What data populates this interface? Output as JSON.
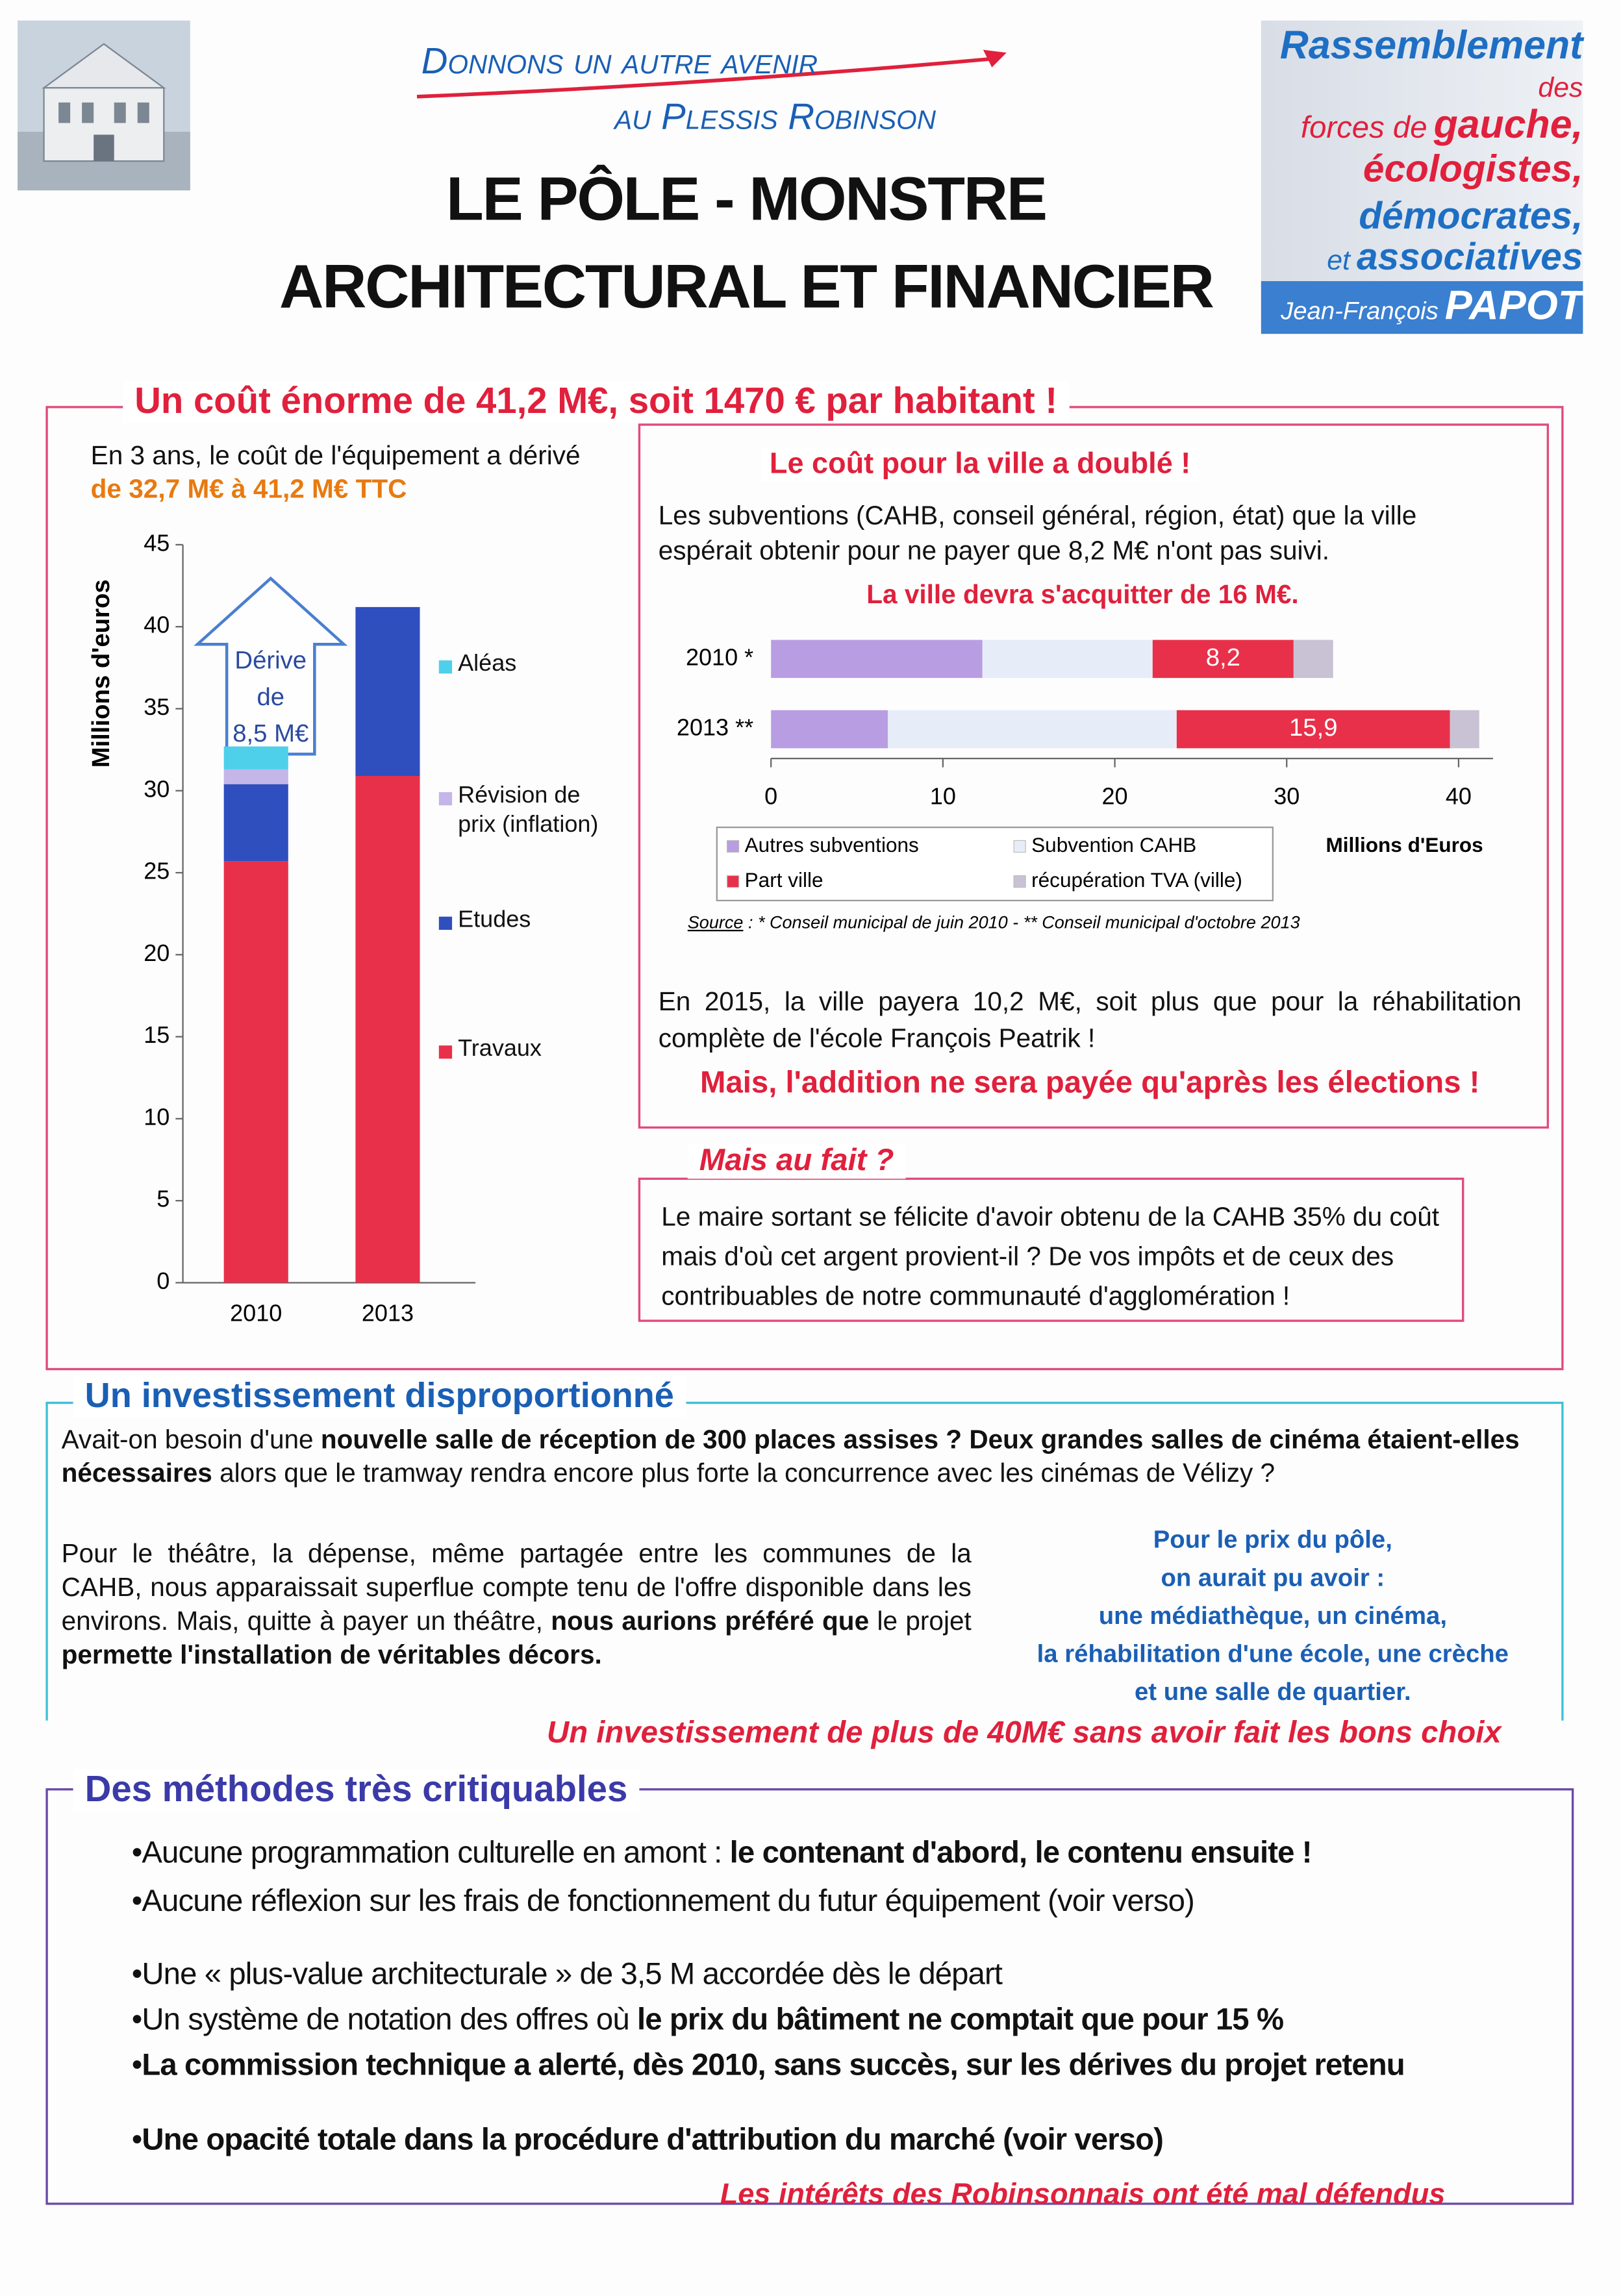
{
  "header": {
    "slogan": [
      "Donnons un autre avenir",
      "au Plessis Robinson"
    ],
    "title": [
      "LE PÔLE - MONSTRE",
      "ARCHITECTURAL ET FINANCIER"
    ],
    "logo": {
      "rassemblement": "Rassemblement",
      "des": "des",
      "forces_de": "forces de",
      "gauche": "gauche,",
      "ecologistes": "écologistes,",
      "democrates": "démocrates,",
      "et": "et",
      "associatives": "associatives",
      "prenom": "Jean-François",
      "nom": "PAPOT"
    }
  },
  "cost_section": {
    "title": "Un coût énorme de 41,2 M€, soit 1470 € par habitant !",
    "intro": [
      {
        "text": "En 3 ans, le coût de l'équipement a dérivé "
      },
      {
        "text": "de 32,7 M€ à 41,2 M€ TTC",
        "highlight": true
      }
    ],
    "city_box": {
      "title": "Le coût pour la ville a doublé !",
      "text": "Les subventions (CAHB, conseil général, région, état) que la ville espérait obtenir pour ne payer que 8,2 M€ n'ont pas suivi.",
      "highlight": "La ville devra s'acquitter de 16 M€.",
      "source_label": "Source",
      "source_text": " : * Conseil municipal de juin 2010 - ** Conseil municipal d'octobre 2013",
      "text2": "En 2015, la ville payera 10,2 M€, soit plus que pour la réhabilitation complète de l'école François Peatrik !",
      "highlight2": "Mais, l'addition ne sera payée qu'après les élections !"
    },
    "question_box": {
      "title": "Mais au fait ?",
      "text": "Le maire sortant se félicite d'avoir obtenu de la CAHB 35% du coût mais d'où cet argent provient-il ? De vos impôts et de ceux des contribuables de notre communauté d'agglomération !"
    }
  },
  "investment_section": {
    "title": "Un investissement disproportionné",
    "p1": [
      {
        "text": "Avait-on besoin d'une "
      },
      {
        "text": "nouvelle salle de réception de 300 places assises ? Deux grandes salles de cinéma étaient-elles nécessaires",
        "bold": true
      },
      {
        "text": " alors que le tramway rendra encore plus forte la concurrence avec les cinémas de Vélizy ?"
      }
    ],
    "p2": [
      {
        "text": "Pour le théâtre, la dépense, même partagée entre les communes de la CAHB, nous apparaissait superflue compte tenu de l'offre disponible dans les environs. Mais, quitte à payer un théâtre, "
      },
      {
        "text": "nous aurions préféré que",
        "bold": true
      },
      {
        "text": " le projet "
      },
      {
        "text": "permette l'installation de véritables décors.",
        "bold": true
      }
    ],
    "sidebar": [
      "Pour le prix du pôle,",
      "on aurait pu avoir :",
      "une médiathèque, un cinéma,",
      "la réhabilitation d'une école, une crèche",
      "et une salle de quartier."
    ],
    "conclusion": "Un investissement de plus de 40M€ sans avoir fait les bons choix"
  },
  "methods_section": {
    "title": "Des méthodes très critiquables",
    "bullets": [
      {
        "runs": [
          {
            "text": "Aucune programmation culturelle en amont : "
          },
          {
            "text": "le contenant d'abord, le contenu ensuite !",
            "bold": true
          }
        ]
      },
      {
        "runs": [
          {
            "text": "Aucune réflexion sur les frais de fonctionnement du futur équipement (voir verso)"
          }
        ]
      },
      {
        "runs": [
          {
            "text": "Une « plus-value architecturale » de 3,5 M accordée dès le départ"
          }
        ]
      },
      {
        "runs": [
          {
            "text": "Un système de notation des offres où "
          },
          {
            "text": "le prix du bâtiment ne comptait que pour 15 %",
            "bold": true
          }
        ]
      },
      {
        "runs": [
          {
            "text": "La commission technique a alerté, dès 2010, sans succès, sur les dérives du projet retenu",
            "bold": true
          }
        ]
      },
      {
        "runs": [
          {
            "text": "Une opacité totale dans la procédure d'attribution du marché (voir verso)",
            "bold": true
          }
        ]
      }
    ],
    "conclusion": "Les intérêts des Robinsonnais ont été mal défendus"
  },
  "chart_data": [
    {
      "type": "bar",
      "stacked": true,
      "ylabel": "Millions d'euros",
      "categories": [
        "2010",
        "2013"
      ],
      "series": [
        {
          "name": "Travaux",
          "color": "#e8304a",
          "values": [
            25.7,
            30.9
          ]
        },
        {
          "name": "Etudes",
          "color": "#2f4fbf",
          "values": [
            4.7,
            10.3
          ]
        },
        {
          "name": "Révision de prix (inflation)",
          "color": "#c4b6e8",
          "values": [
            0.9,
            0
          ]
        },
        {
          "name": "Aléas",
          "color": "#4fd0ea",
          "values": [
            1.4,
            0
          ]
        }
      ],
      "ylim": [
        0,
        45
      ],
      "yticks": [
        0,
        5,
        10,
        15,
        20,
        25,
        30,
        35,
        40,
        45
      ],
      "annotation": [
        "Dérive",
        "de",
        "8,5 M€"
      ]
    },
    {
      "type": "hbar",
      "stacked": true,
      "xlabel": "Millions d'Euros",
      "categories": [
        "2010 *",
        "2013 **"
      ],
      "series": [
        {
          "name": "Autres subventions",
          "color": "#b99de2",
          "values": [
            12.3,
            6.8
          ]
        },
        {
          "name": "Subvention CAHB",
          "color": "#e6edf8",
          "values": [
            9.9,
            16.8
          ]
        },
        {
          "name": "Part ville",
          "color": "#e8304a",
          "values": [
            8.2,
            15.9
          ],
          "value_labels": [
            "8,2",
            "15,9"
          ]
        },
        {
          "name": "récupération TVA (ville)",
          "color": "#c9c2d4",
          "values": [
            2.3,
            1.7
          ]
        }
      ],
      "xlim": [
        0,
        42
      ],
      "xticks": [
        0,
        10,
        20,
        30,
        40
      ]
    }
  ]
}
